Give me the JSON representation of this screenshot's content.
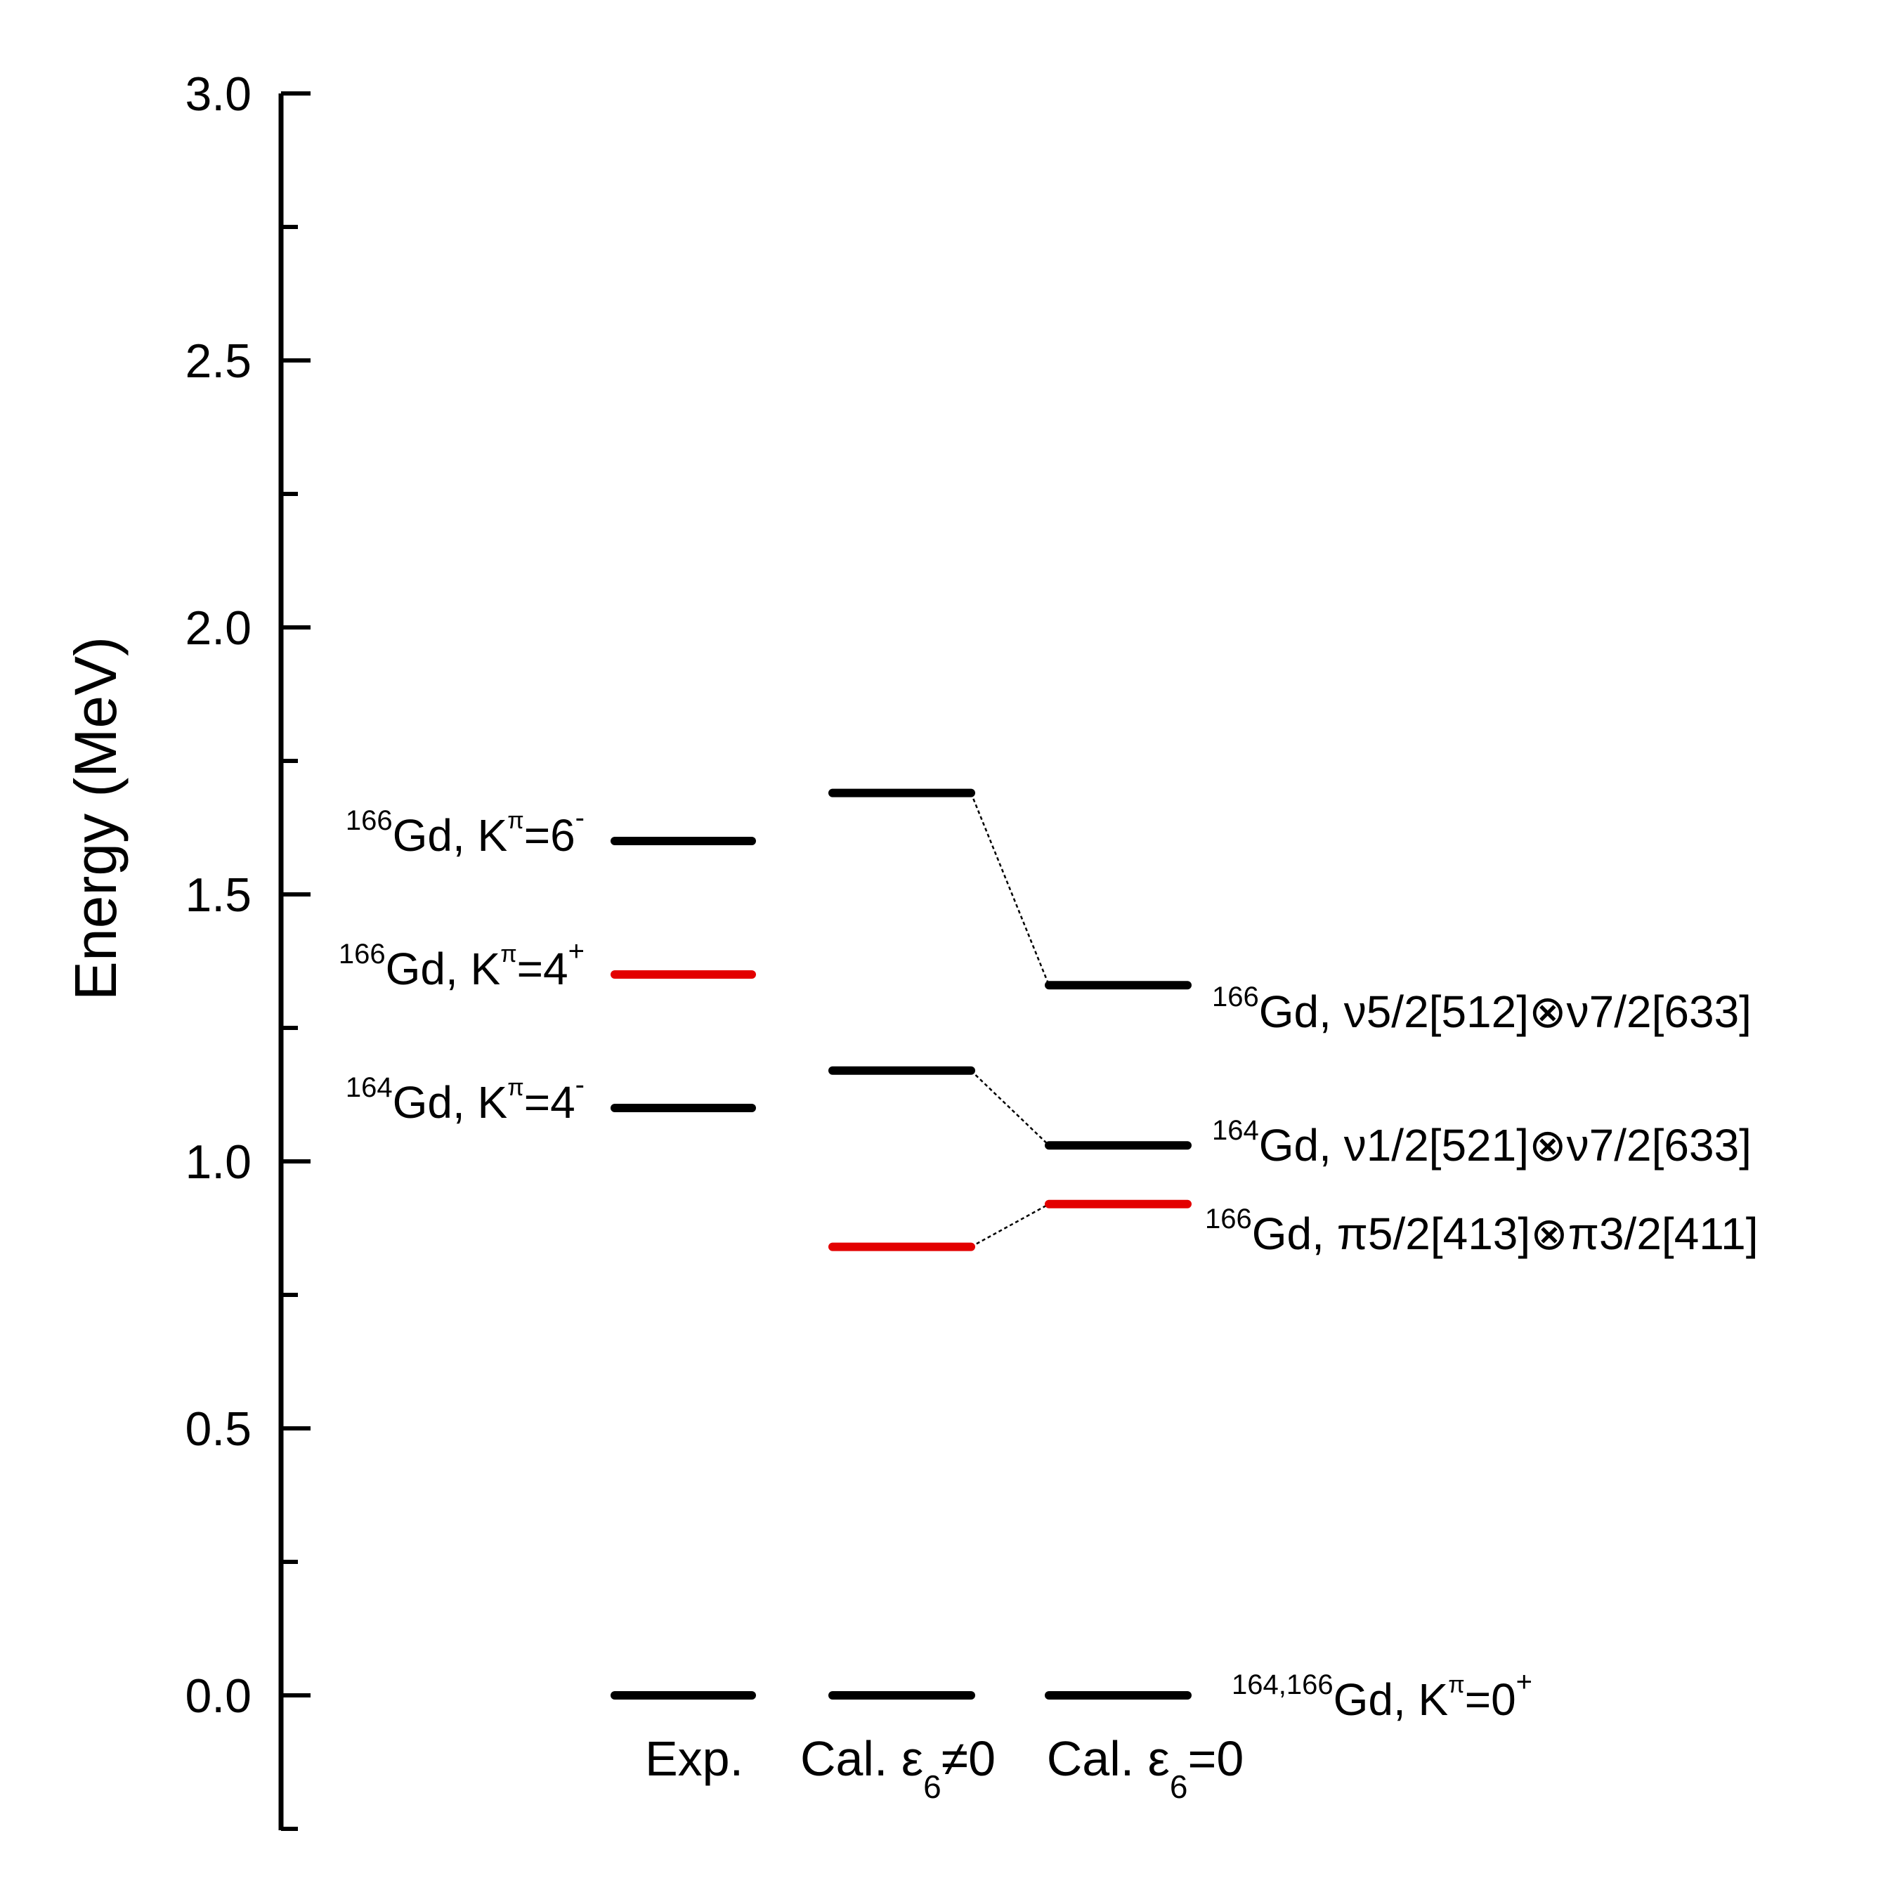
{
  "chart_data": {
    "type": "level-diagram",
    "ylabel": "Energy (MeV)",
    "ylim": [
      -0.25,
      3.0
    ],
    "y_ticks": [
      "0.0",
      "0.5",
      "1.0",
      "1.5",
      "2.0",
      "2.5",
      "3.0"
    ],
    "columns": [
      {
        "id": "exp",
        "label": "Exp."
      },
      {
        "id": "cal_e6_ne0",
        "label": "Cal. ε6≠0",
        "label_main": "Cal. ε",
        "label_sub": "6",
        "label_tail": "≠0"
      },
      {
        "id": "cal_e6_eq0",
        "label": "Cal. ε6=0",
        "label_main": "Cal. ε",
        "label_sub": "6",
        "label_tail": "=0"
      }
    ],
    "colors": {
      "black": "#000000",
      "red": "#e30000"
    },
    "levels": [
      {
        "column": "exp",
        "energy": 0.0,
        "color": "black"
      },
      {
        "column": "exp",
        "energy": 1.1,
        "color": "black"
      },
      {
        "column": "exp",
        "energy": 1.35,
        "color": "red"
      },
      {
        "column": "exp",
        "energy": 1.6,
        "color": "black"
      },
      {
        "column": "cal_e6_ne0",
        "energy": 0.0,
        "color": "black"
      },
      {
        "column": "cal_e6_ne0",
        "energy": 0.84,
        "color": "red"
      },
      {
        "column": "cal_e6_ne0",
        "energy": 1.17,
        "color": "black"
      },
      {
        "column": "cal_e6_ne0",
        "energy": 1.69,
        "color": "black"
      },
      {
        "column": "cal_e6_eq0",
        "energy": 0.0,
        "color": "black"
      },
      {
        "column": "cal_e6_eq0",
        "energy": 0.92,
        "color": "red"
      },
      {
        "column": "cal_e6_eq0",
        "energy": 1.03,
        "color": "black"
      },
      {
        "column": "cal_e6_eq0",
        "energy": 1.33,
        "color": "black"
      }
    ],
    "connectors": [
      {
        "from_energy": 1.69,
        "to_energy": 1.33
      },
      {
        "from_energy": 1.17,
        "to_energy": 1.03
      },
      {
        "from_energy": 0.84,
        "to_energy": 0.92
      }
    ],
    "labels_left": [
      {
        "energy": 1.6,
        "mass": "166",
        "main": "Gd, K",
        "kpi": "π",
        "value": "=6",
        "sign": "-"
      },
      {
        "energy": 1.35,
        "mass": "166",
        "main": "Gd, K",
        "kpi": "π",
        "value": "=4",
        "sign": "+"
      },
      {
        "energy": 1.1,
        "mass": "164",
        "main": "Gd, K",
        "kpi": "π",
        "value": "=4",
        "sign": "-"
      }
    ],
    "labels_right": [
      {
        "energy": 1.33,
        "mass": "166",
        "text": "Gd,  ν5/2[512]⊗ν7/2[633]"
      },
      {
        "energy": 1.03,
        "mass": "164",
        "text": "Gd,  ν1/2[521]⊗ν7/2[633]"
      },
      {
        "energy": 0.92,
        "mass": "166",
        "text": "Gd,  π5/2[413]⊗π3/2[411]"
      },
      {
        "energy": 0.0,
        "mass": "164,166",
        "main": "Gd, K",
        "kpi": "π",
        "value": "=0",
        "sign": "+"
      }
    ]
  }
}
